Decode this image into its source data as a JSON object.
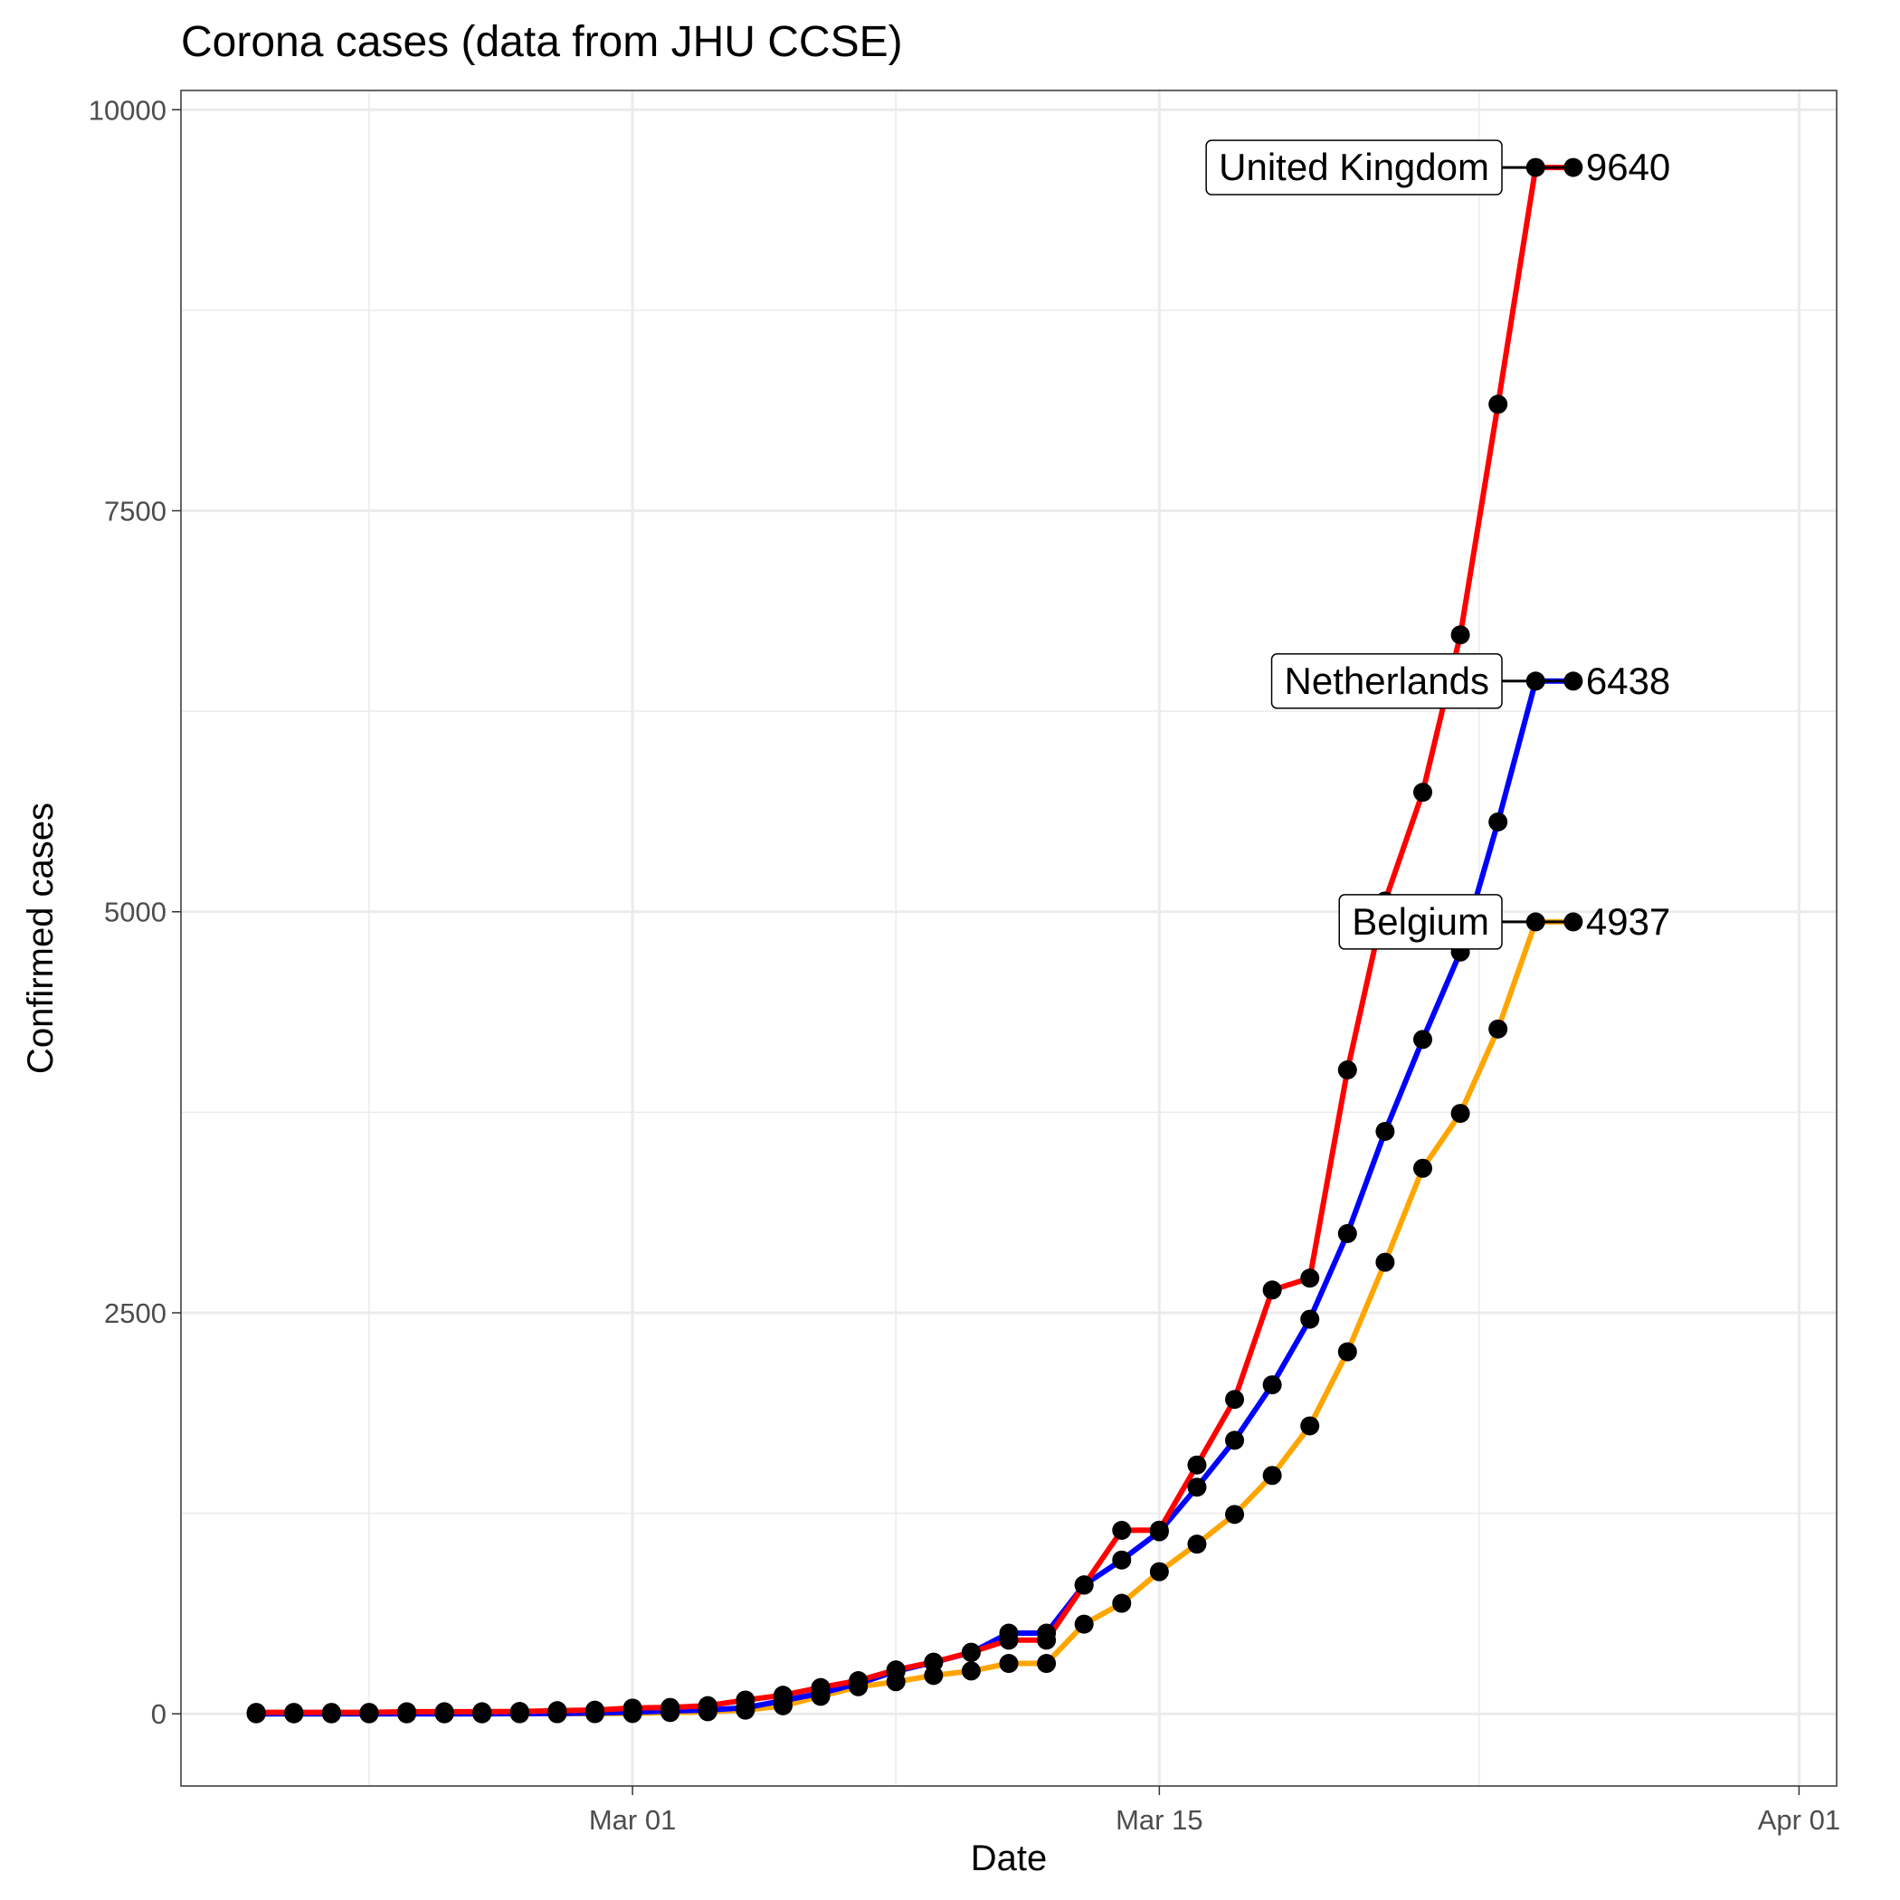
{
  "chart_data": {
    "type": "line",
    "title": "Corona cases (data from JHU CCSE)",
    "xlabel": "Date",
    "ylabel": "Confirmed cases",
    "x_axis_type": "date",
    "xlim": [
      "2020-02-18",
      "2020-04-02"
    ],
    "ylim": [
      -450,
      10120
    ],
    "x_ticks": [
      {
        "date": "2020-03-01",
        "label": "Mar 01"
      },
      {
        "date": "2020-03-15",
        "label": "Mar 15"
      },
      {
        "date": "2020-04-01",
        "label": "Apr 01"
      }
    ],
    "y_ticks": [
      {
        "value": 0,
        "label": "0"
      },
      {
        "value": 2500,
        "label": "2500"
      },
      {
        "value": 5000,
        "label": "5000"
      },
      {
        "value": 7500,
        "label": "7500"
      },
      {
        "value": 10000,
        "label": "10000"
      }
    ],
    "grid": true,
    "legend": "none",
    "x": [
      "2020-02-20",
      "2020-02-21",
      "2020-02-22",
      "2020-02-23",
      "2020-02-24",
      "2020-02-25",
      "2020-02-26",
      "2020-02-27",
      "2020-02-28",
      "2020-02-29",
      "2020-03-01",
      "2020-03-02",
      "2020-03-03",
      "2020-03-04",
      "2020-03-05",
      "2020-03-06",
      "2020-03-07",
      "2020-03-08",
      "2020-03-09",
      "2020-03-10",
      "2020-03-11",
      "2020-03-12",
      "2020-03-13",
      "2020-03-14",
      "2020-03-15",
      "2020-03-16",
      "2020-03-17",
      "2020-03-18",
      "2020-03-19",
      "2020-03-20",
      "2020-03-21",
      "2020-03-22",
      "2020-03-23",
      "2020-03-24",
      "2020-03-25",
      "2020-03-26"
    ],
    "series": [
      {
        "name": "Belgium",
        "color": "#FFA500",
        "values": [
          1,
          1,
          1,
          1,
          1,
          1,
          1,
          1,
          1,
          1,
          2,
          8,
          13,
          23,
          50,
          109,
          169,
          200,
          239,
          267,
          314,
          314,
          559,
          689,
          886,
          1058,
          1243,
          1486,
          1795,
          2257,
          2815,
          3401,
          3743,
          4269,
          4937,
          4937
        ],
        "label_value": "4937"
      },
      {
        "name": "Netherlands",
        "color": "#0000FF",
        "values": [
          0,
          0,
          0,
          0,
          0,
          0,
          0,
          1,
          1,
          6,
          10,
          18,
          24,
          38,
          82,
          128,
          188,
          265,
          321,
          382,
          503,
          503,
          804,
          959,
          1135,
          1413,
          1705,
          2051,
          2460,
          2994,
          3631,
          4204,
          4749,
          5560,
          6438,
          6438
        ],
        "label_value": "6438"
      },
      {
        "name": "United Kingdom",
        "color": "#FF0000",
        "values": [
          9,
          9,
          9,
          9,
          13,
          13,
          13,
          15,
          20,
          23,
          36,
          40,
          51,
          86,
          116,
          164,
          207,
          274,
          322,
          384,
          459,
          459,
          802,
          1144,
          1145,
          1551,
          1960,
          2642,
          2716,
          4014,
          5067,
          5745,
          6726,
          8164,
          9640,
          9640
        ],
        "label_value": "9640"
      }
    ]
  }
}
